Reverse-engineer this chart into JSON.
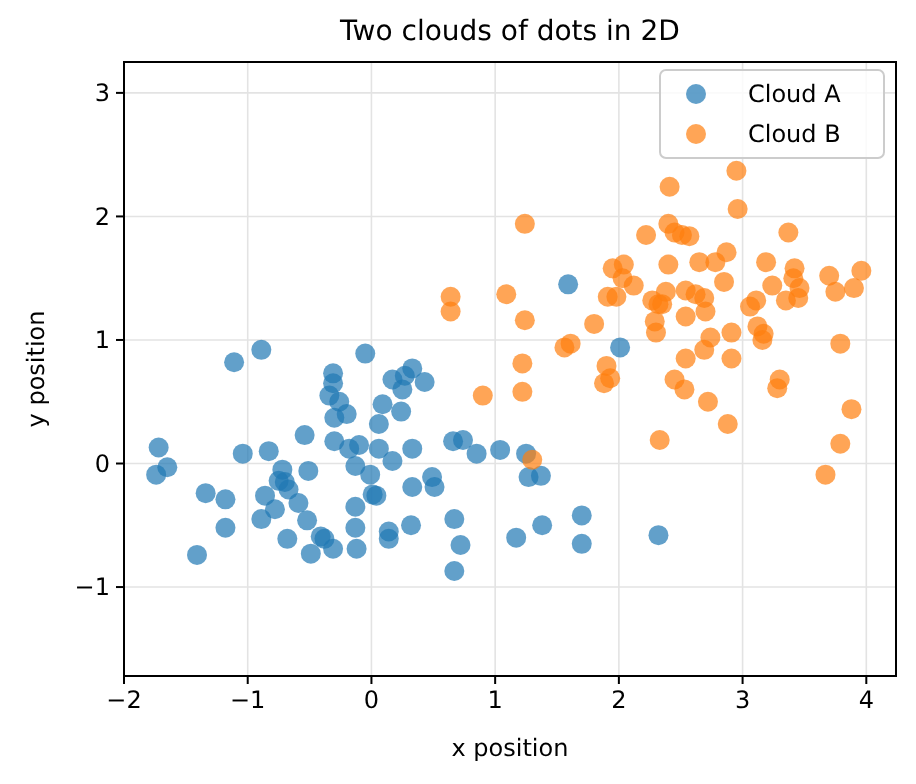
{
  "chart_data": {
    "type": "scatter",
    "title": "Two clouds of dots in 2D",
    "xlabel": "x position",
    "ylabel": "y position",
    "xlim": [
      -2,
      4.24
    ],
    "ylim": [
      -1.72,
      3.25
    ],
    "xticks": [
      {
        "value": -2,
        "label": "−2"
      },
      {
        "value": -1,
        "label": "−1"
      },
      0,
      1,
      2,
      3,
      4
    ],
    "yticks": [
      {
        "value": -1,
        "label": "−1"
      },
      0,
      1,
      2,
      3
    ],
    "grid": true,
    "legend": "top right",
    "marker": "circle",
    "series": [
      {
        "name": "Cloud A",
        "color": "#1f77b4",
        "x": [
          -1.72,
          -1.74,
          -1.65,
          -1.41,
          -1.34,
          -1.18,
          -1.18,
          -1.11,
          -1.04,
          -0.89,
          -0.89,
          -0.86,
          -0.83,
          -0.78,
          -0.75,
          -0.72,
          -0.7,
          -0.67,
          -0.68,
          -0.59,
          -0.54,
          -0.52,
          -0.51,
          -0.49,
          -0.41,
          -0.38,
          -0.31,
          -0.31,
          -0.31,
          -0.34,
          -0.26,
          -0.3,
          -0.2,
          -0.3,
          -0.18,
          -0.1,
          -0.13,
          -0.13,
          -0.13,
          -0.12,
          -0.05,
          -0.01,
          0.01,
          0.04,
          0.06,
          0.06,
          0.09,
          0.14,
          0.14,
          0.17,
          0.17,
          0.24,
          0.25,
          0.27,
          0.33,
          0.33,
          0.33,
          0.32,
          0.43,
          0.49,
          0.51,
          0.66,
          0.74,
          0.67,
          0.72,
          0.67,
          0.85,
          1.04,
          1.17,
          1.25,
          1.27,
          1.37,
          1.38,
          1.59,
          1.7,
          1.7,
          2.01,
          2.32
        ],
        "values": [
          0.13,
          -0.09,
          -0.03,
          -0.74,
          -0.24,
          -0.29,
          -0.52,
          0.82,
          0.08,
          0.92,
          -0.45,
          -0.26,
          0.1,
          -0.37,
          -0.14,
          -0.05,
          -0.15,
          -0.21,
          -0.61,
          -0.32,
          0.23,
          -0.46,
          -0.06,
          -0.73,
          -0.59,
          -0.61,
          -0.69,
          0.73,
          0.65,
          0.55,
          0.5,
          0.37,
          0.4,
          0.18,
          0.12,
          0.15,
          -0.02,
          -0.35,
          -0.52,
          -0.69,
          0.89,
          -0.09,
          -0.25,
          -0.26,
          0.32,
          0.12,
          0.48,
          -0.55,
          -0.61,
          0.68,
          0.02,
          0.42,
          0.6,
          0.71,
          0.77,
          0.12,
          -0.19,
          -0.5,
          0.66,
          -0.11,
          -0.19,
          0.18,
          0.19,
          -0.45,
          -0.66,
          -0.87,
          0.08,
          0.11,
          -0.6,
          0.08,
          -0.11,
          -0.1,
          -0.5,
          1.45,
          -0.42,
          -0.65,
          0.94,
          -0.58
        ]
      },
      {
        "name": "Cloud B",
        "color": "#ff7f0e",
        "x": [
          0.64,
          0.64,
          0.9,
          1.09,
          1.24,
          1.24,
          1.22,
          1.22,
          1.3,
          1.56,
          1.61,
          1.8,
          1.9,
          1.88,
          1.93,
          1.91,
          1.98,
          1.95,
          2.04,
          2.03,
          2.12,
          2.22,
          2.27,
          2.29,
          2.3,
          2.32,
          2.35,
          2.33,
          2.38,
          2.4,
          2.41,
          2.4,
          2.45,
          2.45,
          2.51,
          2.57,
          2.54,
          2.54,
          2.54,
          2.53,
          2.62,
          2.65,
          2.69,
          2.7,
          2.69,
          2.74,
          2.72,
          2.78,
          2.85,
          2.87,
          2.88,
          2.91,
          2.91,
          2.95,
          2.96,
          3.06,
          3.11,
          3.12,
          3.16,
          3.17,
          3.19,
          3.24,
          3.28,
          3.3,
          3.35,
          3.37,
          3.41,
          3.42,
          3.45,
          3.46,
          3.67,
          3.7,
          3.75,
          3.79,
          3.79,
          3.88,
          3.9,
          3.96
        ],
        "values": [
          1.35,
          1.23,
          0.55,
          1.37,
          1.94,
          1.16,
          0.81,
          0.58,
          0.03,
          0.94,
          0.97,
          1.13,
          0.79,
          0.65,
          0.69,
          1.35,
          1.35,
          1.58,
          1.61,
          1.5,
          1.44,
          1.85,
          1.32,
          1.15,
          1.06,
          1.29,
          1.29,
          0.19,
          1.39,
          1.94,
          2.24,
          1.61,
          1.87,
          0.68,
          1.85,
          1.84,
          1.4,
          1.19,
          0.85,
          0.6,
          1.37,
          1.63,
          1.34,
          1.23,
          0.92,
          1.02,
          0.5,
          1.63,
          1.47,
          1.71,
          0.32,
          1.06,
          0.85,
          2.37,
          2.06,
          1.27,
          1.32,
          1.11,
          1.0,
          1.05,
          1.63,
          1.44,
          0.61,
          0.68,
          1.32,
          1.87,
          1.5,
          1.58,
          1.34,
          1.42,
          -0.09,
          1.52,
          1.39,
          0.97,
          0.16,
          0.44,
          1.42,
          1.56
        ]
      }
    ]
  }
}
